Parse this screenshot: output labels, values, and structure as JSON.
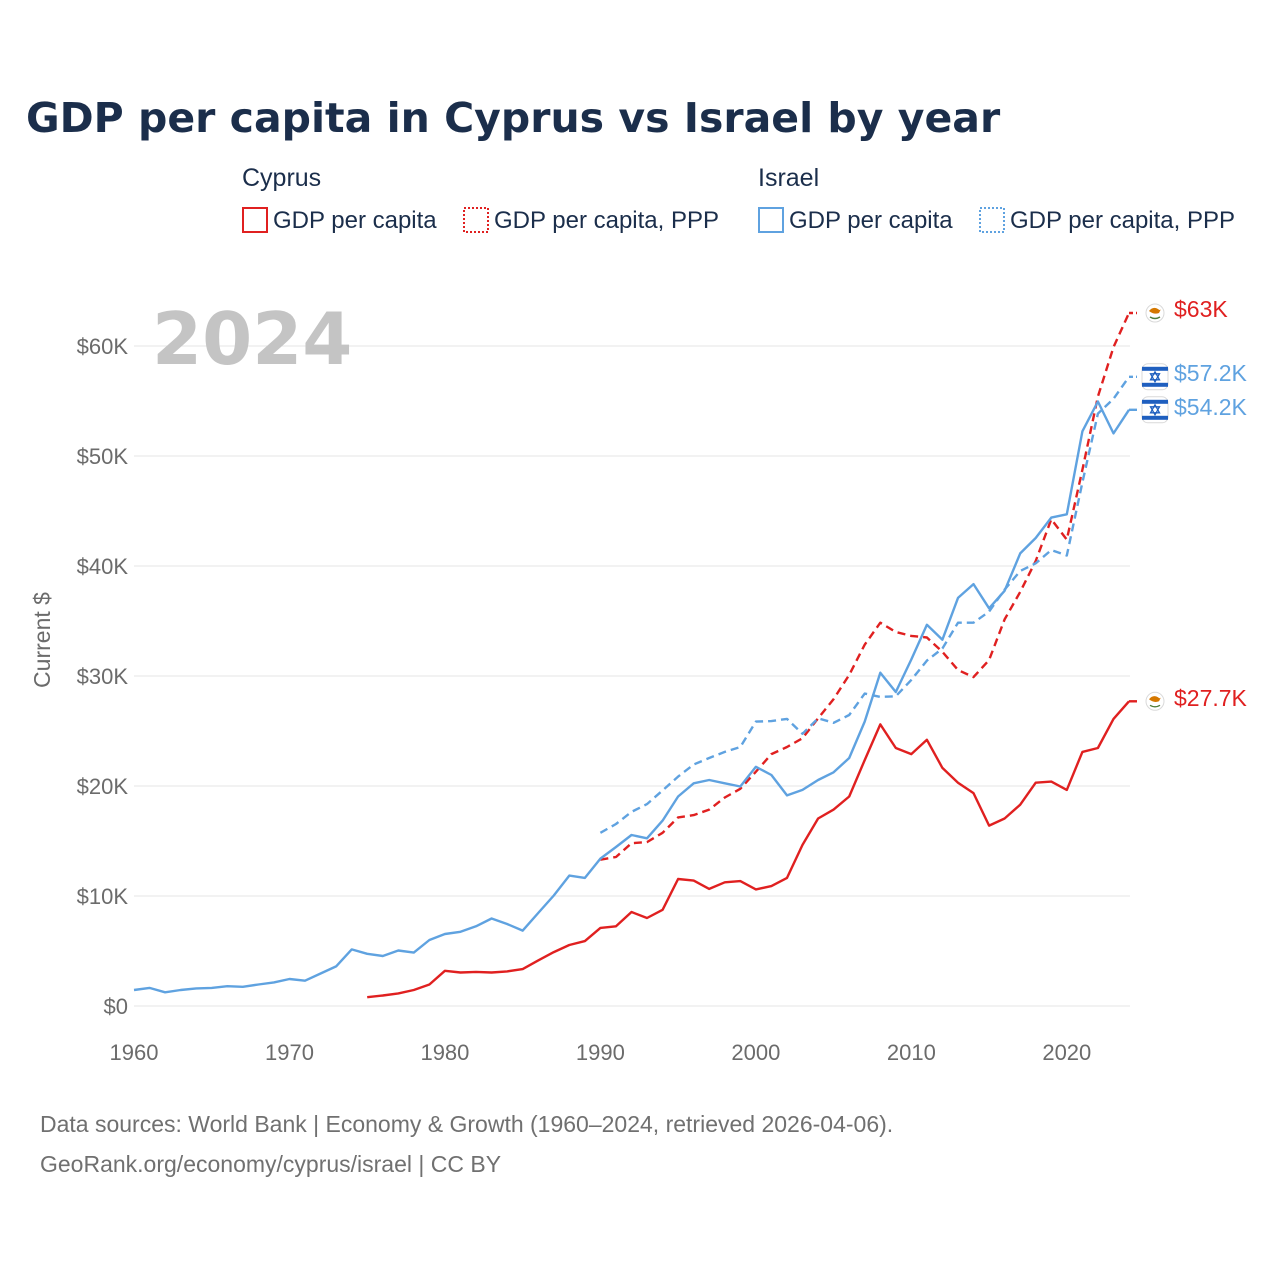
{
  "title": "GDP per capita in Cyprus vs Israel by year",
  "big_year": "2024",
  "colors": {
    "cyprus": "#e02020",
    "israel": "#5fa2e0",
    "title": "#1b2e4b"
  },
  "legend": {
    "groups": [
      {
        "name": "Cyprus",
        "items": [
          {
            "label": "GDP per capita",
            "style": "solid",
            "color": "#e02020"
          },
          {
            "label": "GDP per capita, PPP",
            "style": "dotted",
            "color": "#e02020"
          }
        ]
      },
      {
        "name": "Israel",
        "items": [
          {
            "label": "GDP per capita",
            "style": "solid",
            "color": "#5fa2e0"
          },
          {
            "label": "GDP per capita, PPP",
            "style": "dotted",
            "color": "#5fa2e0"
          }
        ]
      }
    ]
  },
  "end_labels": {
    "cyprus_ppp": "$63K",
    "israel_ppp": "$57.2K",
    "israel_gdp": "$54.2K",
    "cyprus_gdp": "$27.7K"
  },
  "source_lines": [
    "Data sources: World Bank | Economy & Growth (1960–2024, retrieved 2026-04-06).",
    "GeoRank.org/economy/cyprus/israel | CC BY"
  ],
  "chart_data": {
    "type": "line",
    "xlabel": "",
    "ylabel": "Current $",
    "xlim": [
      1960,
      2024
    ],
    "ylim": [
      0,
      60000
    ],
    "x_ticks": [
      1960,
      1970,
      1980,
      1990,
      2000,
      2010,
      2020
    ],
    "y_ticks": [
      {
        "value": 0,
        "label": "$0"
      },
      {
        "value": 10000,
        "label": "$10K"
      },
      {
        "value": 20000,
        "label": "$20K"
      },
      {
        "value": 30000,
        "label": "$30K"
      },
      {
        "value": 40000,
        "label": "$40K"
      },
      {
        "value": 50000,
        "label": "$50K"
      },
      {
        "value": 60000,
        "label": "$60K"
      }
    ],
    "series": [
      {
        "name": "Cyprus GDP per capita",
        "country": "cyprus",
        "dashed": false,
        "start_year": 1975,
        "values": [
          800,
          950,
          1150,
          1450,
          1950,
          3200,
          3050,
          3100,
          3050,
          3150,
          3350,
          4150,
          4900,
          5550,
          5900,
          7100,
          7250,
          8550,
          8000,
          8750,
          11550,
          11400,
          10650,
          11250,
          11350,
          10600,
          10900,
          11650,
          14650,
          17050,
          17850,
          19050,
          22350,
          25600,
          23450,
          22900,
          24200,
          21650,
          20300,
          19350,
          16400,
          17050,
          18300,
          20300,
          20400,
          19650,
          23100,
          23450,
          26100,
          27700
        ]
      },
      {
        "name": "Cyprus GDP per capita, PPP",
        "country": "cyprus",
        "dashed": true,
        "start_year": 1990,
        "values": [
          13300,
          13550,
          14800,
          14900,
          15750,
          17150,
          17350,
          17850,
          18950,
          19750,
          21300,
          22900,
          23550,
          24350,
          26150,
          27900,
          30100,
          32850,
          34850,
          34000,
          33650,
          33500,
          32200,
          30550,
          29900,
          31450,
          35150,
          37650,
          40450,
          44250,
          42400,
          48750,
          55400,
          59900,
          63000
        ]
      },
      {
        "name": "Israel GDP per capita",
        "country": "israel",
        "dashed": false,
        "start_year": 1960,
        "values": [
          1450,
          1650,
          1250,
          1450,
          1600,
          1650,
          1800,
          1750,
          1950,
          2150,
          2450,
          2300,
          2950,
          3600,
          5150,
          4750,
          4550,
          5050,
          4850,
          6000,
          6550,
          6750,
          7250,
          7950,
          7450,
          6850,
          8450,
          10050,
          11850,
          11650,
          13400,
          14450,
          15550,
          15250,
          16850,
          19050,
          20250,
          20550,
          20250,
          19950,
          21750,
          21000,
          19150,
          19650,
          20550,
          21250,
          22550,
          25850,
          30300,
          28550,
          31500,
          34650,
          33300,
          37100,
          38350,
          36150,
          37750,
          41150,
          42550,
          44400,
          44700,
          52250,
          54950,
          52050,
          54200
        ]
      },
      {
        "name": "Israel GDP per capita, PPP",
        "country": "israel",
        "dashed": true,
        "start_year": 1990,
        "values": [
          15750,
          16550,
          17650,
          18350,
          19600,
          20850,
          21950,
          22550,
          23100,
          23550,
          25850,
          25900,
          26100,
          24750,
          26150,
          25750,
          26450,
          28400,
          28100,
          28150,
          29650,
          31400,
          32500,
          34850,
          34850,
          35850,
          37850,
          39550,
          40250,
          41450,
          40950,
          47600,
          53850,
          55200,
          57200
        ]
      }
    ]
  }
}
